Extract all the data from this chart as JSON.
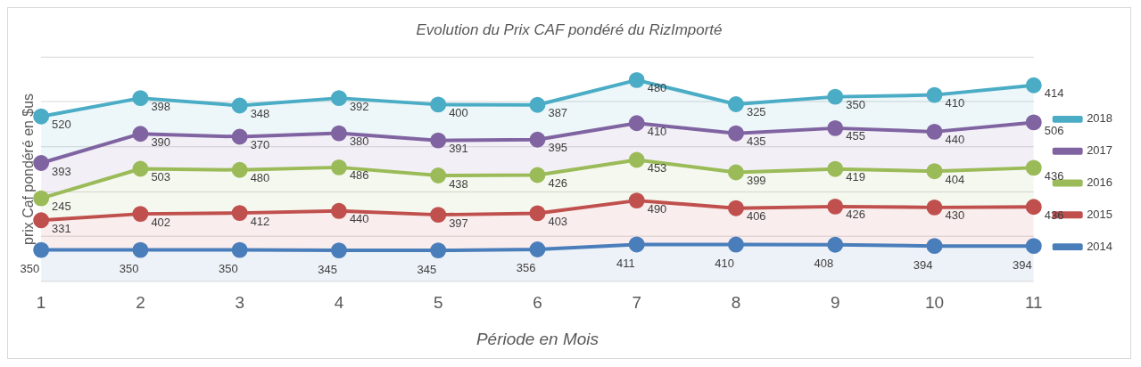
{
  "chart_data": {
    "type": "area",
    "title": "Evolution du Prix CAF pondéré du RizImporté",
    "xlabel": "Période en Mois",
    "ylabel": "prix Caf pondéré en $us",
    "categories": [
      "1",
      "2",
      "3",
      "4",
      "5",
      "6",
      "7",
      "8",
      "9",
      "10",
      "11"
    ],
    "stacked": true,
    "data_labels": true,
    "grid": "y",
    "legend": "right",
    "marker": "circle",
    "tick_labels": "x",
    "series": [
      {
        "name": "2014",
        "color": "#4a7ebb",
        "values": [
          350,
          350,
          350,
          345,
          345,
          356,
          411,
          410,
          408,
          394,
          394
        ]
      },
      {
        "name": "2015",
        "color": "#c0504d",
        "values": [
          331,
          402,
          412,
          440,
          397,
          403,
          490,
          406,
          426,
          430,
          436
        ]
      },
      {
        "name": "2016",
        "color": "#9bbb59",
        "values": [
          245,
          503,
          480,
          486,
          438,
          426,
          453,
          399,
          419,
          404,
          436
        ]
      },
      {
        "name": "2017",
        "color": "#8064a2",
        "values": [
          393,
          390,
          370,
          380,
          391,
          395,
          410,
          435,
          455,
          440,
          506
        ]
      },
      {
        "name": "2018",
        "color": "#4bacc6",
        "values": [
          520,
          398,
          348,
          392,
          400,
          387,
          480,
          325,
          350,
          410,
          414
        ]
      }
    ]
  }
}
